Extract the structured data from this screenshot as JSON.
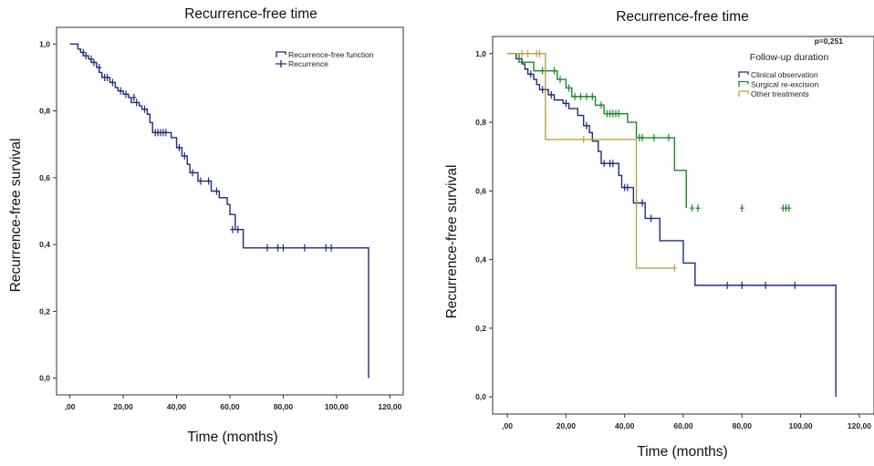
{
  "chart_data": [
    {
      "type": "line",
      "subtype": "kaplan-meier",
      "title": "Recurrence-free time",
      "xlabel": "Time (months)",
      "ylabel": "Recurrence-free survival",
      "xlim": [
        -5,
        125
      ],
      "ylim": [
        -0.05,
        1.05
      ],
      "xticks": [
        0,
        20,
        40,
        60,
        80,
        100,
        120
      ],
      "xtick_labels": [
        ",00",
        "20,00",
        "40,00",
        "60,00",
        "80,00",
        "100,00",
        "120,00"
      ],
      "yticks": [
        0,
        0.2,
        0.4,
        0.6,
        0.8,
        1.0
      ],
      "ytick_labels": [
        "0,0",
        "0,2",
        "0,4",
        "0,6",
        "0,8",
        "1,0"
      ],
      "grid": false,
      "legend_position": "top-right",
      "legend": [
        "Recurrence-free function",
        "Recurrence"
      ],
      "series": [
        {
          "name": "Recurrence-free function",
          "color": "#1f2d7a",
          "steps": [
            [
              0,
              1.0
            ],
            [
              3,
              0.985
            ],
            [
              4,
              0.975
            ],
            [
              5,
              0.965
            ],
            [
              7,
              0.955
            ],
            [
              8,
              0.945
            ],
            [
              10,
              0.93
            ],
            [
              11,
              0.915
            ],
            [
              12,
              0.9
            ],
            [
              15,
              0.885
            ],
            [
              17,
              0.87
            ],
            [
              18,
              0.86
            ],
            [
              20,
              0.85
            ],
            [
              22,
              0.84
            ],
            [
              23,
              0.825
            ],
            [
              26,
              0.815
            ],
            [
              27,
              0.805
            ],
            [
              29,
              0.79
            ],
            [
              30,
              0.765
            ],
            [
              31,
              0.735
            ],
            [
              38,
              0.72
            ],
            [
              40,
              0.69
            ],
            [
              42,
              0.665
            ],
            [
              44,
              0.64
            ],
            [
              45,
              0.615
            ],
            [
              48,
              0.59
            ],
            [
              53,
              0.56
            ],
            [
              56,
              0.54
            ],
            [
              59,
              0.52
            ],
            [
              60,
              0.49
            ],
            [
              62,
              0.445
            ],
            [
              65,
              0.39
            ],
            [
              112,
              0.0
            ]
          ],
          "censored": [
            [
              5,
              0.975
            ],
            [
              6,
              0.965
            ],
            [
              8,
              0.955
            ],
            [
              9,
              0.945
            ],
            [
              11,
              0.93
            ],
            [
              13,
              0.9
            ],
            [
              14,
              0.9
            ],
            [
              16,
              0.885
            ],
            [
              19,
              0.86
            ],
            [
              21,
              0.85
            ],
            [
              24,
              0.84
            ],
            [
              25,
              0.825
            ],
            [
              28,
              0.805
            ],
            [
              32,
              0.735
            ],
            [
              33,
              0.735
            ],
            [
              34,
              0.735
            ],
            [
              35,
              0.735
            ],
            [
              36,
              0.735
            ],
            [
              41,
              0.69
            ],
            [
              43,
              0.665
            ],
            [
              46,
              0.615
            ],
            [
              49,
              0.59
            ],
            [
              52,
              0.59
            ],
            [
              55,
              0.56
            ],
            [
              61,
              0.445
            ],
            [
              63,
              0.445
            ],
            [
              74,
              0.39
            ],
            [
              78,
              0.39
            ],
            [
              80,
              0.39
            ],
            [
              88,
              0.39
            ],
            [
              96,
              0.39
            ],
            [
              98,
              0.39
            ]
          ]
        }
      ]
    },
    {
      "type": "line",
      "subtype": "kaplan-meier",
      "title": "Recurrence-free time",
      "xlabel": "Time (months)",
      "ylabel": "Recurrence-free survival",
      "xlim": [
        -5,
        125
      ],
      "ylim": [
        -0.05,
        1.05
      ],
      "xticks": [
        0,
        20,
        40,
        60,
        80,
        100,
        120
      ],
      "xtick_labels": [
        ",00",
        "20,00",
        "40,00",
        "60,00",
        "80,00",
        "100,00",
        "120,00"
      ],
      "yticks": [
        0,
        0.2,
        0.4,
        0.6,
        0.8,
        1.0
      ],
      "ytick_labels": [
        "0,0",
        "0,2",
        "0,4",
        "0,6",
        "0,8",
        "1,0"
      ],
      "grid": false,
      "annotation": "p=0,251",
      "legend_title": "Follow-up duration",
      "legend_position": "top-right",
      "series": [
        {
          "name": "Clinical observation",
          "color": "#1f2d7a",
          "steps": [
            [
              0,
              1.0
            ],
            [
              3,
              0.985
            ],
            [
              5,
              0.97
            ],
            [
              6,
              0.955
            ],
            [
              7,
              0.94
            ],
            [
              9,
              0.925
            ],
            [
              10,
              0.91
            ],
            [
              11,
              0.895
            ],
            [
              14,
              0.88
            ],
            [
              16,
              0.865
            ],
            [
              19,
              0.855
            ],
            [
              21,
              0.84
            ],
            [
              24,
              0.82
            ],
            [
              26,
              0.79
            ],
            [
              28,
              0.77
            ],
            [
              29,
              0.745
            ],
            [
              31,
              0.715
            ],
            [
              32,
              0.68
            ],
            [
              38,
              0.645
            ],
            [
              39,
              0.61
            ],
            [
              43,
              0.565
            ],
            [
              47,
              0.52
            ],
            [
              52,
              0.455
            ],
            [
              60,
              0.39
            ],
            [
              64,
              0.325
            ],
            [
              112,
              0.0
            ]
          ],
          "censored": [
            [
              8,
              0.94
            ],
            [
              12,
              0.895
            ],
            [
              13,
              0.895
            ],
            [
              15,
              0.88
            ],
            [
              20,
              0.855
            ],
            [
              27,
              0.79
            ],
            [
              33,
              0.68
            ],
            [
              35,
              0.68
            ],
            [
              36,
              0.68
            ],
            [
              40,
              0.61
            ],
            [
              41,
              0.61
            ],
            [
              44,
              0.565
            ],
            [
              46,
              0.565
            ],
            [
              49,
              0.52
            ],
            [
              75,
              0.325
            ],
            [
              80,
              0.325
            ],
            [
              88,
              0.325
            ],
            [
              98,
              0.325
            ]
          ]
        },
        {
          "name": "Surgical re-excision",
          "color": "#1a8a2a",
          "steps": [
            [
              0,
              1.0
            ],
            [
              4,
              0.975
            ],
            [
              9,
              0.95
            ],
            [
              17,
              0.925
            ],
            [
              20,
              0.9
            ],
            [
              22,
              0.875
            ],
            [
              30,
              0.85
            ],
            [
              33,
              0.825
            ],
            [
              41,
              0.8
            ],
            [
              44,
              0.755
            ],
            [
              57,
              0.66
            ],
            [
              61,
              0.55
            ]
          ],
          "censored": [
            [
              12,
              0.95
            ],
            [
              13,
              0.95
            ],
            [
              16,
              0.95
            ],
            [
              18,
              0.925
            ],
            [
              21,
              0.9
            ],
            [
              23,
              0.875
            ],
            [
              25,
              0.875
            ],
            [
              27,
              0.875
            ],
            [
              29,
              0.875
            ],
            [
              32,
              0.85
            ],
            [
              34,
              0.825
            ],
            [
              35,
              0.825
            ],
            [
              36,
              0.825
            ],
            [
              37,
              0.825
            ],
            [
              38,
              0.825
            ],
            [
              45,
              0.755
            ],
            [
              46,
              0.755
            ],
            [
              50,
              0.755
            ],
            [
              55,
              0.755
            ],
            [
              63,
              0.55
            ],
            [
              65,
              0.55
            ],
            [
              80,
              0.55
            ],
            [
              94,
              0.55
            ],
            [
              95,
              0.55
            ],
            [
              96,
              0.55
            ]
          ]
        },
        {
          "name": "Other treatments",
          "color": "#b8a24a",
          "steps": [
            [
              0,
              1.0
            ],
            [
              13,
              0.75
            ],
            [
              44,
              0.375
            ],
            [
              57,
              0.375
            ]
          ],
          "censored": [
            [
              5,
              1.0
            ],
            [
              7,
              1.0
            ],
            [
              10,
              1.0
            ],
            [
              11,
              1.0
            ],
            [
              26,
              0.75
            ],
            [
              57,
              0.375
            ]
          ]
        }
      ]
    }
  ]
}
